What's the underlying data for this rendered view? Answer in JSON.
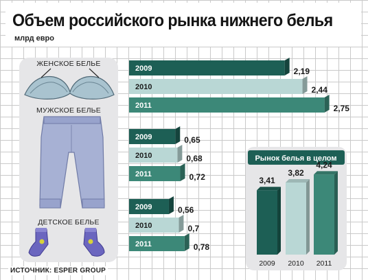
{
  "header": {
    "title": "Объем российского рынка нижнего белья",
    "unit": "млрд евро"
  },
  "source": "ИСТОЧНИК: ESPER GROUP",
  "colors": {
    "y2009": "#1d5f55",
    "y2010": "#b9d7d5",
    "y2011": "#3c8878"
  },
  "chart_data": [
    {
      "type": "bar",
      "orientation": "horizontal",
      "title": "",
      "categories": [
        "ЖЕНСКОЕ БЕЛЬЕ",
        "МУЖСКОЕ БЕЛЬЕ",
        "ДЕТСКОЕ БЕЛЬЕ"
      ],
      "series": [
        {
          "name": "2009",
          "values": [
            2.19,
            0.65,
            0.56
          ],
          "labels": [
            "2,19",
            "0,65",
            "0,56"
          ]
        },
        {
          "name": "2010",
          "values": [
            2.44,
            0.68,
            0.7
          ],
          "labels": [
            "2,44",
            "0,68",
            "0,7"
          ]
        },
        {
          "name": "2011",
          "values": [
            2.75,
            0.72,
            0.78
          ],
          "labels": [
            "2,75",
            "0,72",
            "0,78"
          ]
        }
      ]
    },
    {
      "type": "bar",
      "orientation": "vertical",
      "title": "Рынок белья в целом",
      "categories": [
        "2009",
        "2010",
        "2011"
      ],
      "values": [
        3.41,
        3.82,
        4.24
      ],
      "labels": [
        "3,41",
        "3,82",
        "4,24"
      ]
    }
  ]
}
